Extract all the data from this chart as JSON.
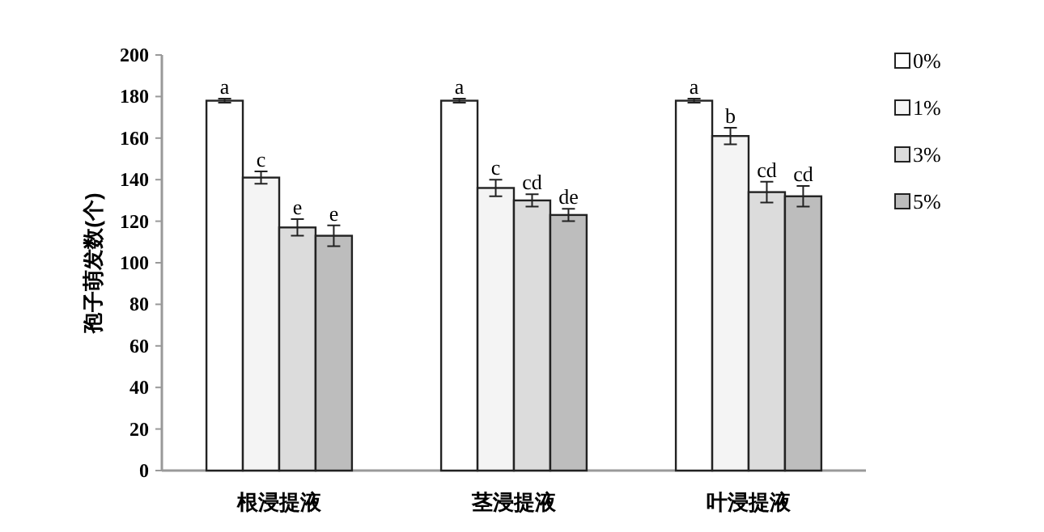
{
  "chart_data": {
    "type": "bar",
    "ylabel": "孢子萌发数(个)",
    "categories": [
      "根浸提液",
      "茎浸提液",
      "叶浸提液"
    ],
    "series": [
      {
        "name": "0%",
        "color": "#ffffff",
        "values": [
          178,
          178,
          178
        ],
        "errors": [
          1,
          1,
          1
        ],
        "value_labels": [
          "a",
          "a",
          "a"
        ]
      },
      {
        "name": "1%",
        "color": "#f4f4f4",
        "values": [
          141,
          136,
          161
        ],
        "errors": [
          3,
          4,
          4
        ],
        "value_labels": [
          "c",
          "c",
          "b"
        ]
      },
      {
        "name": "3%",
        "color": "#dcdcdc",
        "values": [
          117,
          130,
          134
        ],
        "errors": [
          4,
          3,
          5
        ],
        "value_labels": [
          "e",
          "cd",
          "cd"
        ]
      },
      {
        "name": "5%",
        "color": "#bdbdbd",
        "values": [
          113,
          123,
          132
        ],
        "errors": [
          5,
          3,
          5
        ],
        "value_labels": [
          "e",
          "de",
          "cd"
        ]
      }
    ],
    "ylim": [
      0,
      200
    ],
    "yticks": [
      0,
      20,
      40,
      60,
      80,
      100,
      120,
      140,
      160,
      180,
      200
    ],
    "grid": false,
    "legend": "top right"
  }
}
